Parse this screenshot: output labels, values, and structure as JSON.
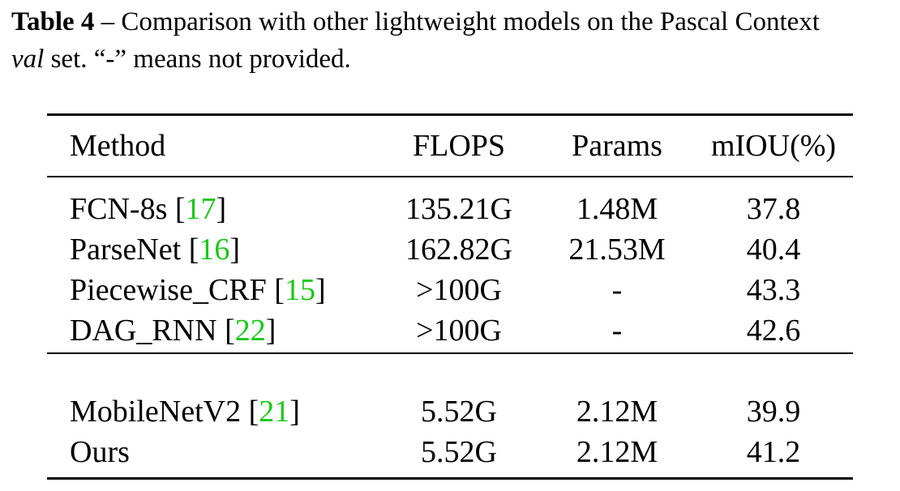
{
  "caption": {
    "label": "Table 4",
    "dash": " – ",
    "text_a": "Comparison with other lightweight models on the Pascal Context ",
    "italic": "val",
    "text_b": " set. “-” means not provided."
  },
  "table": {
    "headers": {
      "method": "Method",
      "flops": "FLOPS",
      "params": "Params",
      "miou": "mIOU(%)"
    },
    "group1": [
      {
        "method": "FCN-8s ",
        "ref_open": "[",
        "ref": "17",
        "ref_close": "]",
        "flops": "135.21G",
        "params": "1.48M",
        "miou": "37.8"
      },
      {
        "method": "ParseNet ",
        "ref_open": "[",
        "ref": "16",
        "ref_close": "]",
        "flops": "162.82G",
        "params": "21.53M",
        "miou": "40.4"
      },
      {
        "method": "Piecewise_CRF ",
        "ref_open": "[",
        "ref": "15",
        "ref_close": "]",
        "flops": ">100G",
        "params": "-",
        "miou": "43.3"
      },
      {
        "method": "DAG_RNN ",
        "ref_open": "[",
        "ref": "22",
        "ref_close": "]",
        "flops": ">100G",
        "params": "-",
        "miou": "42.6"
      }
    ],
    "group2": [
      {
        "method": "MobileNetV2 ",
        "ref_open": "[",
        "ref": "21",
        "ref_close": "]",
        "flops": "5.52G",
        "params": "2.12M",
        "miou": "39.9"
      },
      {
        "method": "Ours",
        "ref_open": "",
        "ref": "",
        "ref_close": "",
        "flops": "5.52G",
        "params": "2.12M",
        "miou": "41.2"
      }
    ]
  },
  "colors": {
    "reference_link": "#19c819",
    "text": "#000000"
  }
}
